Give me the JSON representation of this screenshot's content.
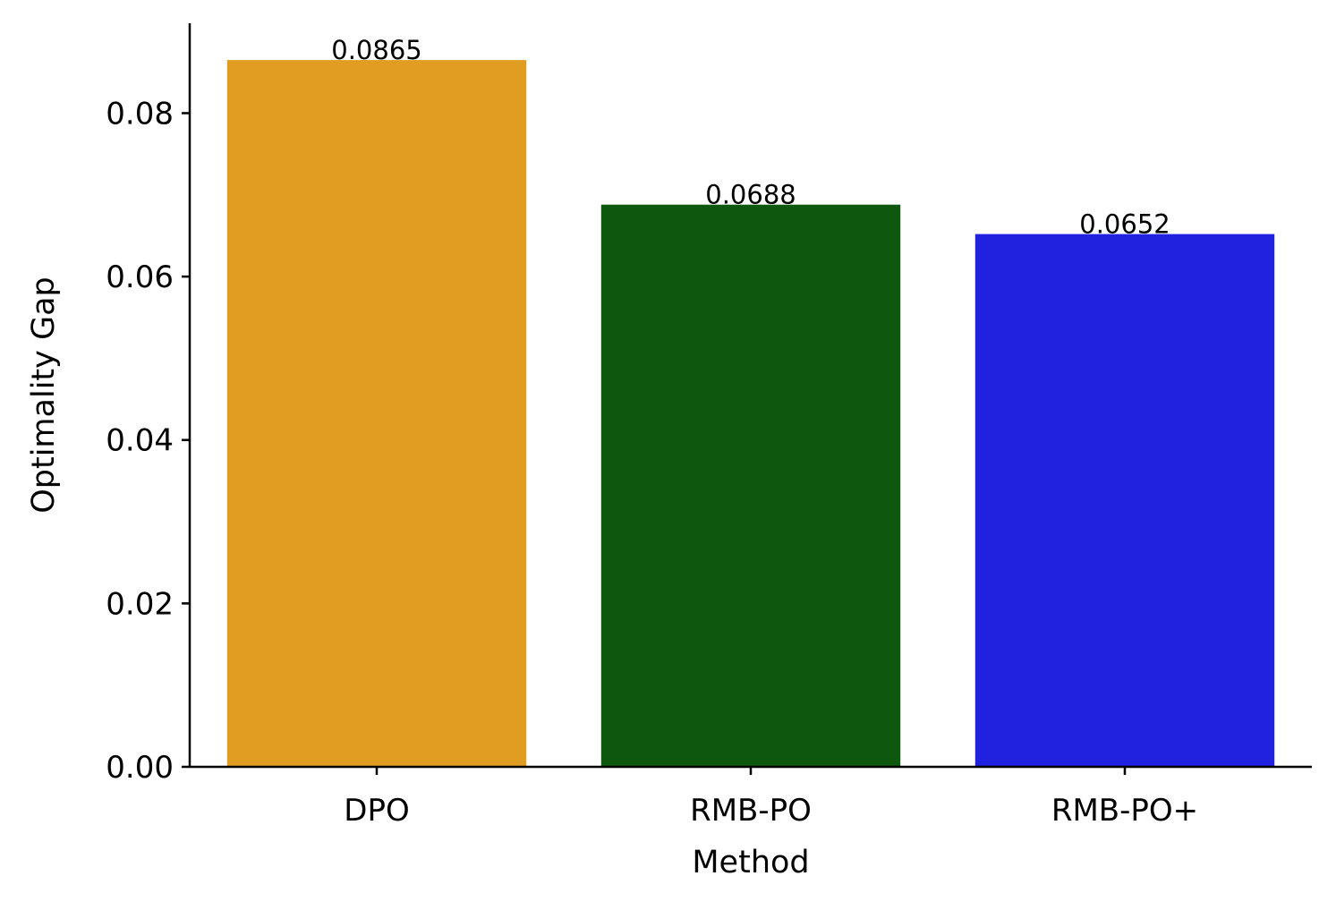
{
  "chart_data": {
    "type": "bar",
    "categories": [
      "DPO",
      "RMB-PO",
      "RMB-PO+"
    ],
    "values": [
      0.0865,
      0.0688,
      0.0652
    ],
    "value_labels": [
      "0.0865",
      "0.0688",
      "0.0652"
    ],
    "colors": [
      "#e09d21",
      "#0e570e",
      "#2121e0"
    ],
    "xlabel": "Method",
    "ylabel": "Optimality Gap",
    "ylim": [
      0,
      0.091
    ],
    "yticks": [
      0.0,
      0.02,
      0.04,
      0.06,
      0.08
    ],
    "ytick_labels": [
      "0.00",
      "0.02",
      "0.04",
      "0.06",
      "0.08"
    ],
    "grid": false,
    "legend": "none",
    "spines": "left-bottom"
  }
}
